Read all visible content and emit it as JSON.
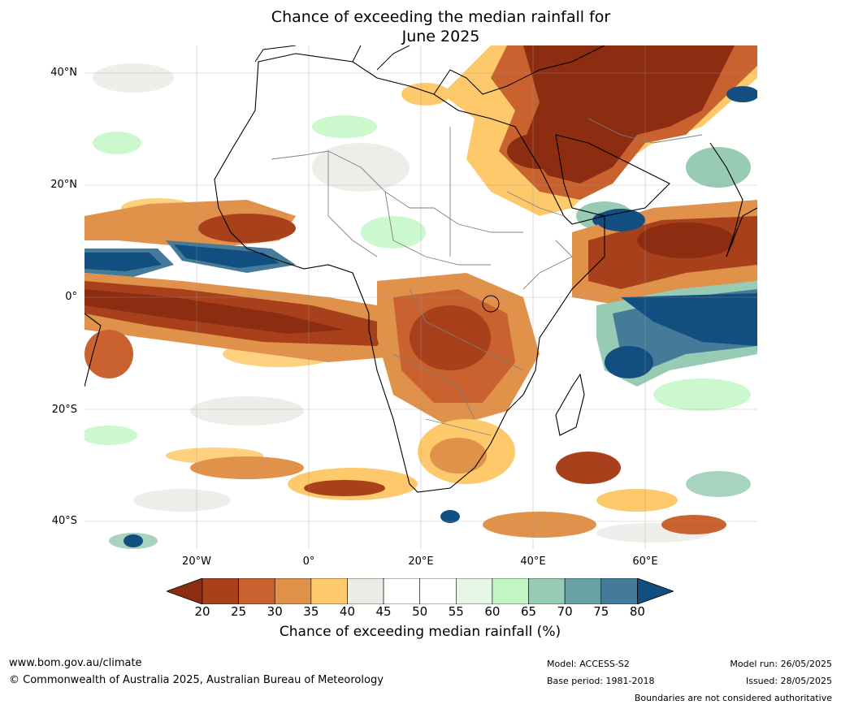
{
  "title": {
    "line1": "Chance of exceeding the median rainfall for",
    "line2": "June 2025"
  },
  "map": {
    "lat_labels": [
      "40°N",
      "20°N",
      "0°",
      "20°S",
      "40°S"
    ],
    "lon_labels": [
      "20°W",
      "0°",
      "20°E",
      "40°E",
      "60°E"
    ],
    "extent": {
      "lon_min": -40,
      "lon_max": 80,
      "lat_min": -45,
      "lat_max": 45
    }
  },
  "colorbar": {
    "ticks": [
      "20",
      "25",
      "30",
      "35",
      "40",
      "45",
      "50",
      "55",
      "60",
      "65",
      "70",
      "75",
      "80"
    ],
    "colors": [
      "#8c2d12",
      "#a8401c",
      "#c9622f",
      "#e0914a",
      "#fdc96b",
      "#ecebe6",
      "#ffffff",
      "#ffffff",
      "#e6f6e6",
      "#c2f7c5",
      "#98cbb4",
      "#6aa1a4",
      "#457b98",
      "#124f80"
    ],
    "label": "Chance of exceeding median rainfall (%)"
  },
  "footer": {
    "website": "www.bom.gov.au/climate",
    "copyright": "© Commonwealth of Australia 2025, Australian Bureau of Meteorology",
    "model": "Model: ACCESS-S2",
    "base_period": "Base period: 1981-2018",
    "model_run": "Model run: 26/05/2025",
    "issued": "Issued: 28/05/2025",
    "disclaimer": "Boundaries are not considered authoritative"
  }
}
